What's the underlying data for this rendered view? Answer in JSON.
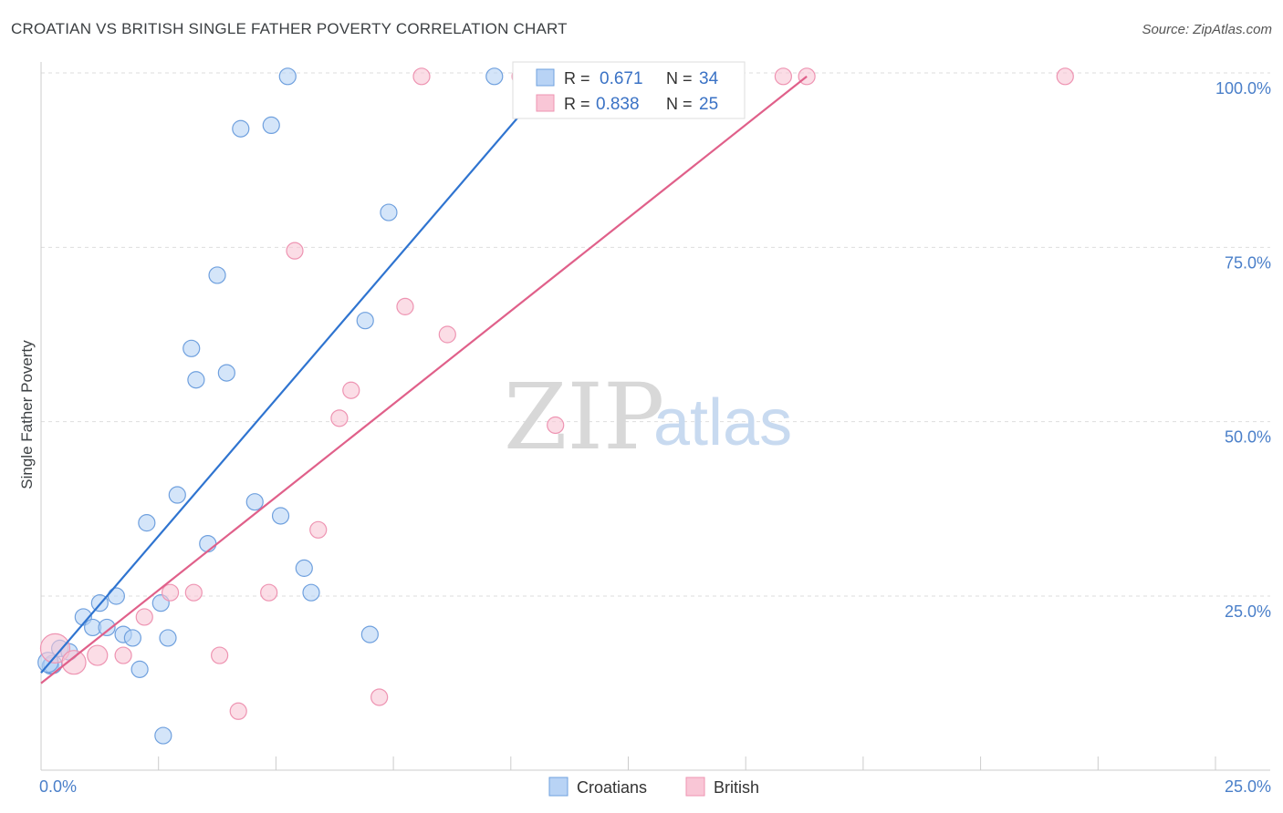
{
  "title": "CROATIAN VS BRITISH SINGLE FATHER POVERTY CORRELATION CHART",
  "source": "Source: ZipAtlas.com",
  "watermark": {
    "zip": "ZIP",
    "atlas": "atlas"
  },
  "legend_top": {
    "rows": [
      {
        "r_label": "R =",
        "r_value": "0.671",
        "n_label": "N =",
        "n_value": "34"
      },
      {
        "r_label": "R =",
        "r_value": "0.838",
        "n_label": "N =",
        "n_value": "25"
      }
    ]
  },
  "legend_bottom": {
    "croatians": "Croatians",
    "british": "British"
  },
  "colors": {
    "croatians_fill": "#b8d3f5",
    "croatians_stroke": "#6fa0de",
    "croatians_line": "#2f74d0",
    "british_fill": "#f9c6d6",
    "british_stroke": "#ee94b2",
    "british_line": "#e0608a",
    "axis_text": "#4a7fc9",
    "grid": "#dddddd"
  },
  "chart_data": {
    "type": "scatter",
    "title": "CROATIAN VS BRITISH SINGLE FATHER POVERTY CORRELATION CHART",
    "xlabel": "",
    "ylabel": "Single Father Poverty",
    "xlim": [
      0,
      25
    ],
    "ylim": [
      3,
      102
    ],
    "x_tick_labels": [
      "0.0%",
      "25.0%"
    ],
    "y_ticks": [
      25,
      50,
      75,
      100
    ],
    "y_tick_labels": [
      "25.0%",
      "50.0%",
      "75.0%",
      "100.0%"
    ],
    "series": [
      {
        "name": "Croatians",
        "R": 0.671,
        "N": 34,
        "trend": {
          "x0": 0.0,
          "y0": 14.0,
          "x1": 10.2,
          "y1": 94.0
        },
        "points": [
          {
            "x": 0.2,
            "y": 15.0,
            "s": 9
          },
          {
            "x": 0.25,
            "y": 15.2,
            "s": 10
          },
          {
            "x": 0.4,
            "y": 17.5,
            "s": 9
          },
          {
            "x": 0.6,
            "y": 17.0,
            "s": 9
          },
          {
            "x": 0.9,
            "y": 22.0,
            "s": 9
          },
          {
            "x": 1.1,
            "y": 20.5,
            "s": 9
          },
          {
            "x": 1.25,
            "y": 24.0,
            "s": 9
          },
          {
            "x": 1.4,
            "y": 20.5,
            "s": 9
          },
          {
            "x": 1.6,
            "y": 25.0,
            "s": 9
          },
          {
            "x": 1.75,
            "y": 19.5,
            "s": 9
          },
          {
            "x": 1.95,
            "y": 19.0,
            "s": 9
          },
          {
            "x": 2.1,
            "y": 14.5,
            "s": 9
          },
          {
            "x": 2.25,
            "y": 35.5,
            "s": 9
          },
          {
            "x": 2.55,
            "y": 24.0,
            "s": 9
          },
          {
            "x": 2.6,
            "y": 5.0,
            "s": 9
          },
          {
            "x": 2.7,
            "y": 19.0,
            "s": 9
          },
          {
            "x": 2.9,
            "y": 39.5,
            "s": 9
          },
          {
            "x": 3.2,
            "y": 60.5,
            "s": 9
          },
          {
            "x": 3.3,
            "y": 56.0,
            "s": 9
          },
          {
            "x": 3.55,
            "y": 32.5,
            "s": 9
          },
          {
            "x": 3.75,
            "y": 71.0,
            "s": 9
          },
          {
            "x": 3.95,
            "y": 57.0,
            "s": 9
          },
          {
            "x": 4.25,
            "y": 92.0,
            "s": 9
          },
          {
            "x": 4.55,
            "y": 38.5,
            "s": 9
          },
          {
            "x": 4.9,
            "y": 92.5,
            "s": 9
          },
          {
            "x": 5.1,
            "y": 36.5,
            "s": 9
          },
          {
            "x": 5.25,
            "y": 99.5,
            "s": 9
          },
          {
            "x": 5.6,
            "y": 29.0,
            "s": 9
          },
          {
            "x": 5.75,
            "y": 25.5,
            "s": 9
          },
          {
            "x": 6.9,
            "y": 64.5,
            "s": 9
          },
          {
            "x": 7.0,
            "y": 19.5,
            "s": 9
          },
          {
            "x": 7.4,
            "y": 80.0,
            "s": 9
          },
          {
            "x": 9.65,
            "y": 99.5,
            "s": 9
          },
          {
            "x": 0.15,
            "y": 15.5,
            "s": 11
          }
        ]
      },
      {
        "name": "British",
        "R": 0.838,
        "N": 25,
        "trend": {
          "x0": 0.0,
          "y0": 12.5,
          "x1": 16.3,
          "y1": 99.5
        },
        "points": [
          {
            "x": 0.3,
            "y": 17.5,
            "s": 16
          },
          {
            "x": 0.7,
            "y": 15.5,
            "s": 13
          },
          {
            "x": 1.2,
            "y": 16.5,
            "s": 11
          },
          {
            "x": 1.75,
            "y": 16.5,
            "s": 9
          },
          {
            "x": 2.2,
            "y": 22.0,
            "s": 9
          },
          {
            "x": 2.75,
            "y": 25.5,
            "s": 9
          },
          {
            "x": 3.25,
            "y": 25.5,
            "s": 9
          },
          {
            "x": 3.8,
            "y": 16.5,
            "s": 9
          },
          {
            "x": 4.2,
            "y": 8.5,
            "s": 9
          },
          {
            "x": 4.85,
            "y": 25.5,
            "s": 9
          },
          {
            "x": 5.4,
            "y": 74.5,
            "s": 9
          },
          {
            "x": 5.9,
            "y": 34.5,
            "s": 9
          },
          {
            "x": 6.35,
            "y": 50.5,
            "s": 9
          },
          {
            "x": 6.6,
            "y": 54.5,
            "s": 9
          },
          {
            "x": 7.2,
            "y": 10.5,
            "s": 9
          },
          {
            "x": 7.75,
            "y": 66.5,
            "s": 9
          },
          {
            "x": 8.1,
            "y": 99.5,
            "s": 9
          },
          {
            "x": 8.65,
            "y": 62.5,
            "s": 9
          },
          {
            "x": 10.2,
            "y": 99.5,
            "s": 9
          },
          {
            "x": 10.95,
            "y": 49.5,
            "s": 9
          },
          {
            "x": 13.2,
            "y": 99.5,
            "s": 9
          },
          {
            "x": 15.8,
            "y": 99.5,
            "s": 9
          },
          {
            "x": 16.3,
            "y": 99.5,
            "s": 9
          },
          {
            "x": 21.8,
            "y": 99.5,
            "s": 9
          },
          {
            "x": 10.4,
            "y": 99.5,
            "s": 9
          }
        ]
      }
    ]
  }
}
